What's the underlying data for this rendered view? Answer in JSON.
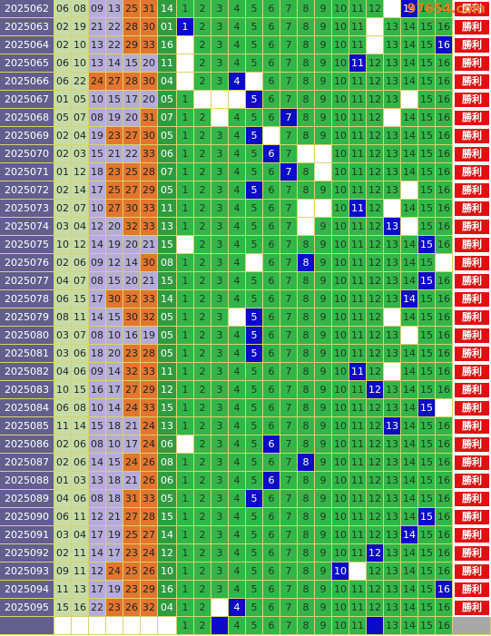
{
  "watermark": "97654.com",
  "grid_labels": [
    "1",
    "2",
    "3",
    "4",
    "5",
    "6",
    "7",
    "8",
    "9",
    "10",
    "11",
    "12",
    "13",
    "14",
    "15",
    "16"
  ],
  "rows": [
    {
      "issue": "2025062",
      "reds": [
        "06",
        "08",
        "09",
        "13",
        "25",
        "31"
      ],
      "blue": "14",
      "blanks": [
        13
      ],
      "result": "勝利"
    },
    {
      "issue": "2025063",
      "reds": [
        "02",
        "19",
        "21",
        "22",
        "28",
        "30"
      ],
      "blue": "01",
      "blanks": [
        12
      ],
      "result": "勝利"
    },
    {
      "issue": "2025064",
      "reds": [
        "02",
        "10",
        "13",
        "22",
        "29",
        "33"
      ],
      "blue": "16",
      "blanks": [
        1,
        12
      ],
      "result": "勝利"
    },
    {
      "issue": "2025065",
      "reds": [
        "06",
        "10",
        "13",
        "14",
        "15",
        "20"
      ],
      "blue": "11",
      "blanks": [
        1
      ],
      "result": "勝利"
    },
    {
      "issue": "2025066",
      "reds": [
        "06",
        "22",
        "24",
        "27",
        "28",
        "30"
      ],
      "blue": "04",
      "blanks": [
        1,
        5
      ],
      "result": "勝利"
    },
    {
      "issue": "2025067",
      "reds": [
        "01",
        "05",
        "10",
        "15",
        "17",
        "20"
      ],
      "blue": "05",
      "blanks": [
        2,
        3,
        4,
        14
      ],
      "result": "勝利"
    },
    {
      "issue": "2025068",
      "reds": [
        "05",
        "07",
        "08",
        "19",
        "20",
        "31"
      ],
      "blue": "07",
      "blanks": [
        3,
        13
      ],
      "result": "勝利"
    },
    {
      "issue": "2025069",
      "reds": [
        "02",
        "04",
        "19",
        "23",
        "27",
        "30"
      ],
      "blue": "05",
      "blanks": [
        6
      ],
      "result": "勝利"
    },
    {
      "issue": "2025070",
      "reds": [
        "02",
        "03",
        "15",
        "21",
        "22",
        "33"
      ],
      "blue": "06",
      "blanks": [
        8,
        9
      ],
      "result": "勝利"
    },
    {
      "issue": "2025071",
      "reds": [
        "01",
        "12",
        "18",
        "23",
        "25",
        "28"
      ],
      "blue": "07",
      "blanks": [
        9
      ],
      "result": "勝利"
    },
    {
      "issue": "2025072",
      "reds": [
        "02",
        "14",
        "17",
        "25",
        "27",
        "29"
      ],
      "blue": "05",
      "blanks": [
        14
      ],
      "result": "勝利"
    },
    {
      "issue": "2025073",
      "reds": [
        "02",
        "07",
        "10",
        "27",
        "30",
        "33"
      ],
      "blue": "11",
      "blanks": [
        8,
        9,
        13
      ],
      "result": "勝利"
    },
    {
      "issue": "2025074",
      "reds": [
        "03",
        "04",
        "12",
        "20",
        "32",
        "33"
      ],
      "blue": "13",
      "blanks": [
        8,
        14
      ],
      "result": "勝利"
    },
    {
      "issue": "2025075",
      "reds": [
        "10",
        "12",
        "14",
        "19",
        "20",
        "21"
      ],
      "blue": "15",
      "blanks": [
        1
      ],
      "result": "勝利"
    },
    {
      "issue": "2025076",
      "reds": [
        "02",
        "06",
        "09",
        "12",
        "14",
        "30"
      ],
      "blue": "08",
      "blanks": [
        5,
        16
      ],
      "result": "勝利"
    },
    {
      "issue": "2025077",
      "reds": [
        "04",
        "07",
        "08",
        "15",
        "20",
        "21"
      ],
      "blue": "15",
      "blanks": [],
      "result": "勝利"
    },
    {
      "issue": "2025078",
      "reds": [
        "06",
        "15",
        "17",
        "30",
        "32",
        "33"
      ],
      "blue": "14",
      "blanks": [],
      "result": "勝利"
    },
    {
      "issue": "2025079",
      "reds": [
        "08",
        "11",
        "14",
        "15",
        "30",
        "32"
      ],
      "blue": "05",
      "blanks": [
        4,
        13
      ],
      "result": "勝利"
    },
    {
      "issue": "2025080",
      "reds": [
        "03",
        "07",
        "08",
        "10",
        "16",
        "19"
      ],
      "blue": "05",
      "blanks": [
        14
      ],
      "result": "勝利"
    },
    {
      "issue": "2025081",
      "reds": [
        "03",
        "06",
        "18",
        "20",
        "23",
        "28"
      ],
      "blue": "05",
      "blanks": [],
      "result": "勝利"
    },
    {
      "issue": "2025082",
      "reds": [
        "04",
        "06",
        "09",
        "14",
        "32",
        "33"
      ],
      "blue": "11",
      "blanks": [
        13
      ],
      "result": "勝利"
    },
    {
      "issue": "2025083",
      "reds": [
        "10",
        "15",
        "16",
        "17",
        "27",
        "29"
      ],
      "blue": "12",
      "blanks": [],
      "result": "勝利"
    },
    {
      "issue": "2025084",
      "reds": [
        "06",
        "08",
        "10",
        "14",
        "24",
        "33"
      ],
      "blue": "15",
      "blanks": [
        16
      ],
      "result": "勝利"
    },
    {
      "issue": "2025085",
      "reds": [
        "11",
        "14",
        "15",
        "18",
        "21",
        "24"
      ],
      "blue": "13",
      "blanks": [],
      "result": "勝利"
    },
    {
      "issue": "2025086",
      "reds": [
        "02",
        "06",
        "08",
        "10",
        "17",
        "24"
      ],
      "blue": "06",
      "blanks": [
        1
      ],
      "result": "勝利"
    },
    {
      "issue": "2025087",
      "reds": [
        "02",
        "06",
        "14",
        "15",
        "24",
        "26"
      ],
      "blue": "08",
      "blanks": [],
      "result": "勝利"
    },
    {
      "issue": "2025088",
      "reds": [
        "01",
        "03",
        "13",
        "18",
        "21",
        "26"
      ],
      "blue": "06",
      "blanks": [],
      "result": "勝利"
    },
    {
      "issue": "2025089",
      "reds": [
        "04",
        "06",
        "08",
        "18",
        "31",
        "33"
      ],
      "blue": "05",
      "blanks": [],
      "result": "勝利"
    },
    {
      "issue": "2025090",
      "reds": [
        "06",
        "11",
        "12",
        "21",
        "27",
        "28"
      ],
      "blue": "15",
      "blanks": [],
      "result": "勝利"
    },
    {
      "issue": "2025091",
      "reds": [
        "03",
        "04",
        "17",
        "19",
        "25",
        "27"
      ],
      "blue": "14",
      "blanks": [],
      "result": "勝利"
    },
    {
      "issue": "2025092",
      "reds": [
        "02",
        "11",
        "14",
        "17",
        "23",
        "24"
      ],
      "blue": "12",
      "blanks": [],
      "result": "勝利"
    },
    {
      "issue": "2025093",
      "reds": [
        "09",
        "11",
        "12",
        "24",
        "25",
        "26"
      ],
      "blue": "10",
      "blanks": [
        11
      ],
      "result": "勝利"
    },
    {
      "issue": "2025094",
      "reds": [
        "11",
        "13",
        "17",
        "19",
        "23",
        "29"
      ],
      "blue": "16",
      "blanks": [],
      "result": "勝利"
    },
    {
      "issue": "2025095",
      "reds": [
        "15",
        "16",
        "22",
        "23",
        "26",
        "32"
      ],
      "blue": "04",
      "blanks": [
        3
      ],
      "result": "勝利"
    }
  ],
  "footer": {
    "blues": [
      3,
      12
    ]
  }
}
